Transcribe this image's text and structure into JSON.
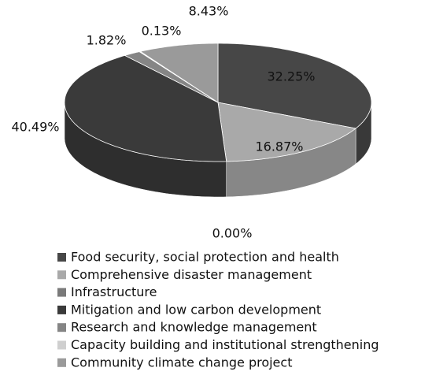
{
  "chart_data": {
    "type": "pie3d",
    "categories": [
      "Food security, social protection and health",
      "Comprehensive disaster management",
      "Infrastructure",
      "Mitigation and low carbon development",
      "Research and knowledge management",
      "Capacity building and institutional strengthening",
      "Community climate change project"
    ],
    "values": [
      32.25,
      16.87,
      0.0,
      40.49,
      1.82,
      0.13,
      8.43
    ],
    "value_labels": [
      "32.25%",
      "16.87%",
      "0.00%",
      "40.49%",
      "1.82%",
      "0.13%",
      "8.43%"
    ],
    "colors": [
      "#474747",
      "#a9a9a9",
      "#7a7a7a",
      "#3a3a3a",
      "#858585",
      "#cfcfcf",
      "#9a9a9a"
    ],
    "legend": "bottom"
  }
}
